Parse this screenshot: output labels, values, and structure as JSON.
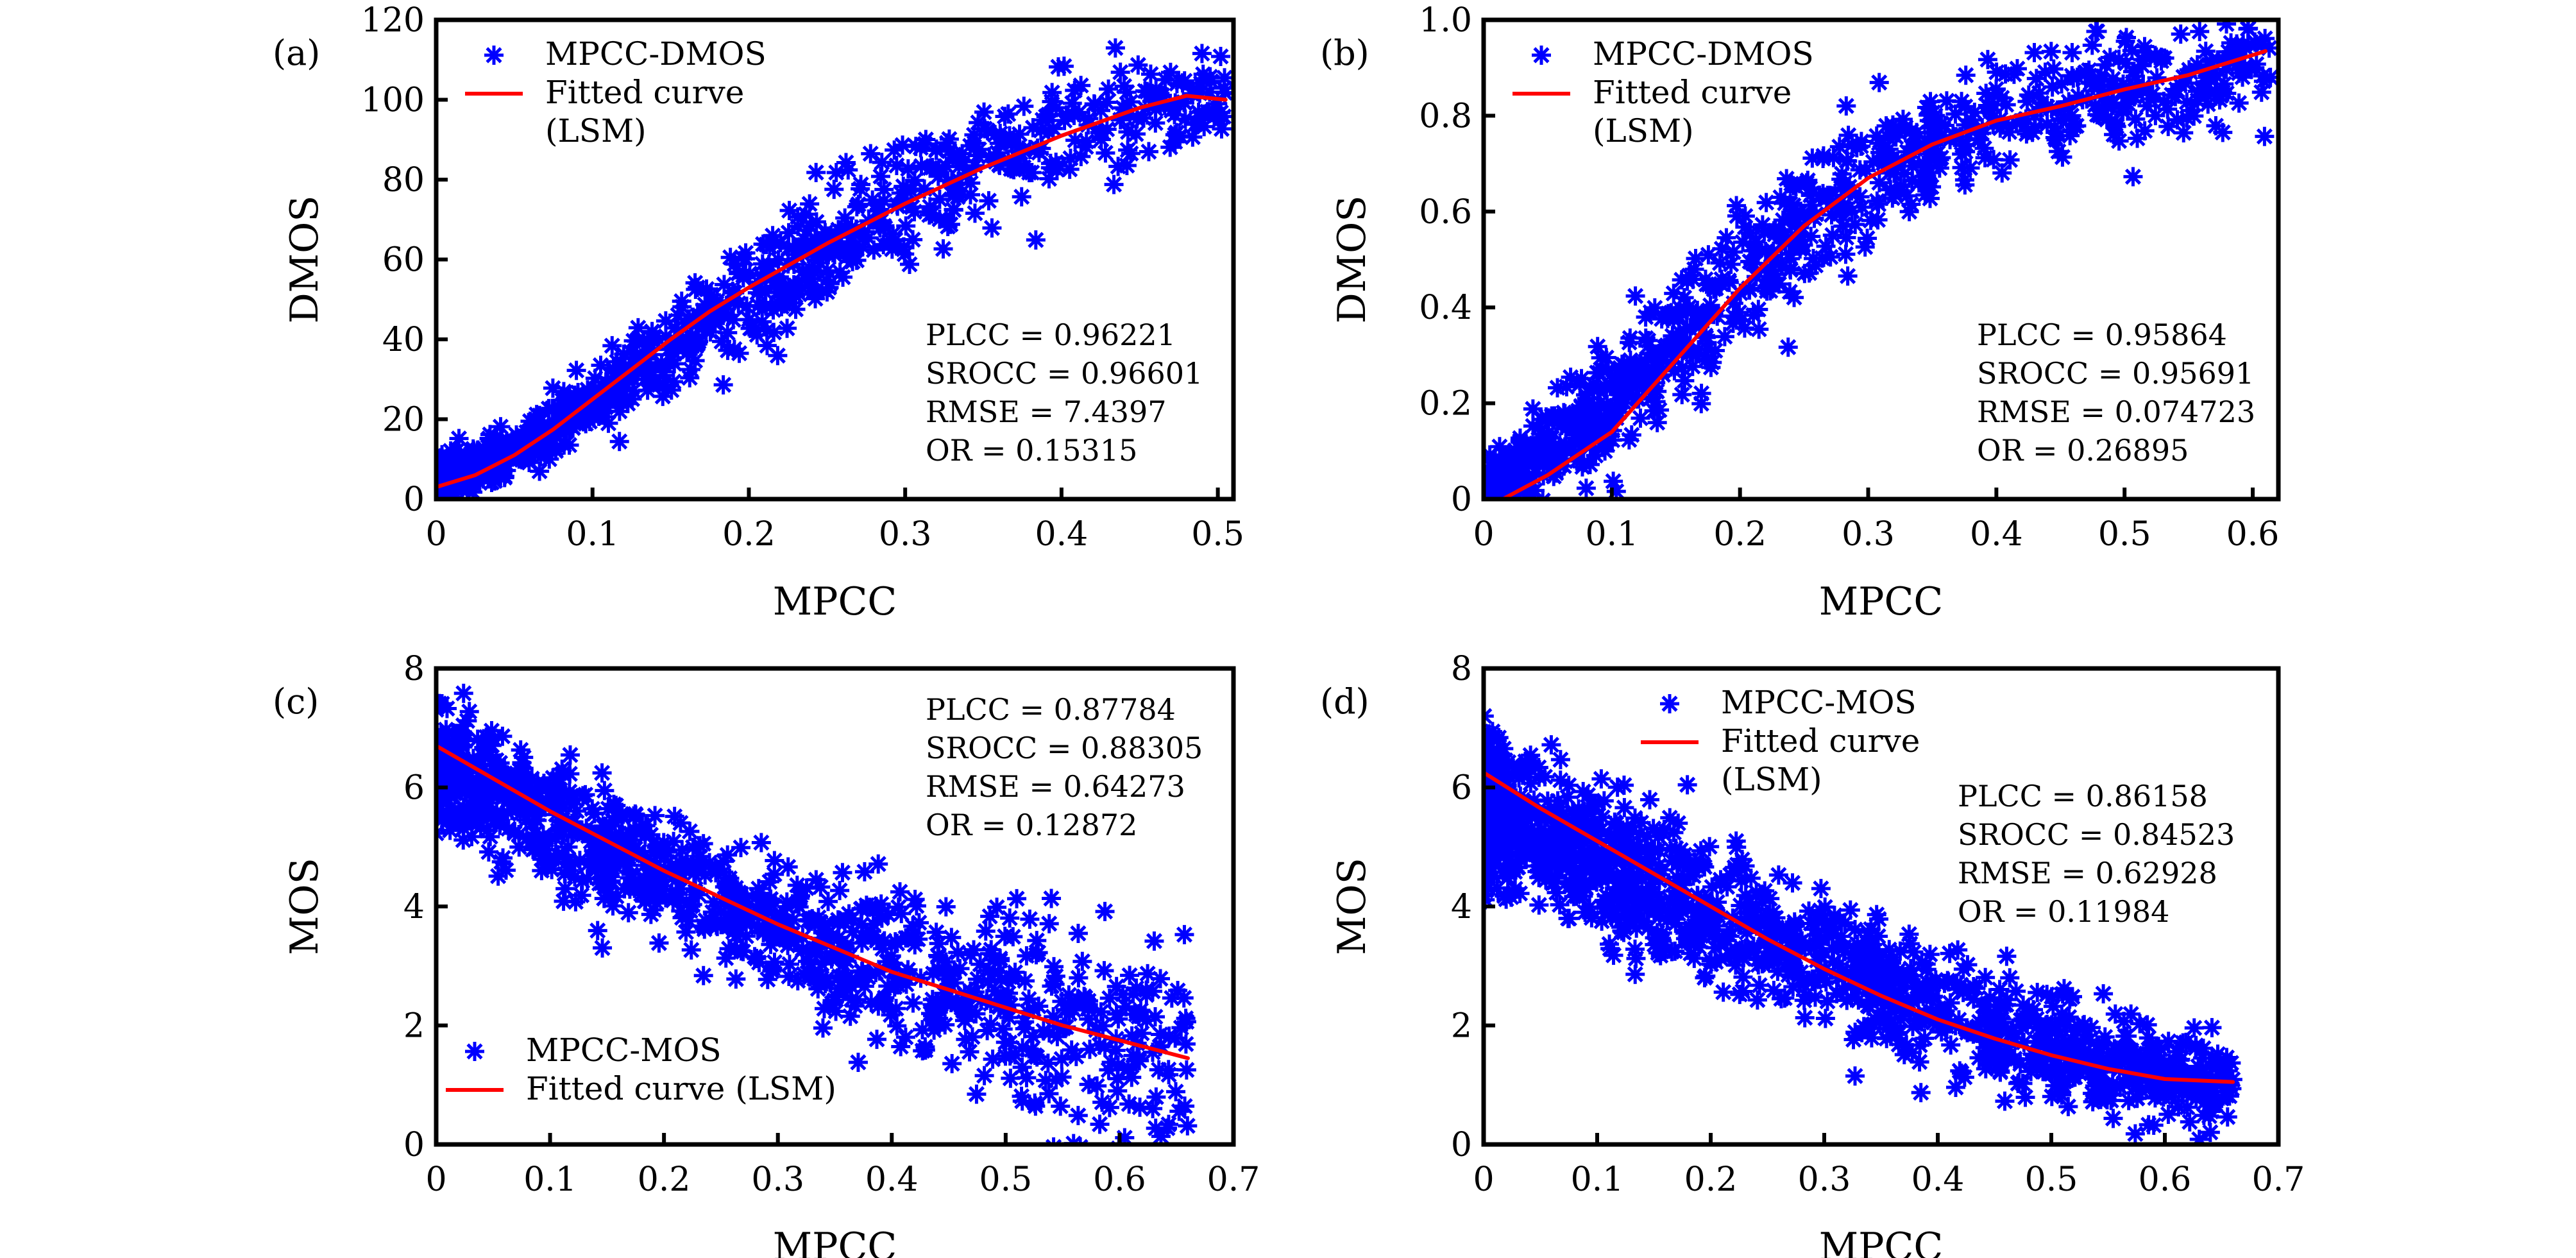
{
  "figure": {
    "background": "#ffffff",
    "marker_color": "#0000ff",
    "fit_color": "#ff0000"
  },
  "chart_data": [
    {
      "id": "a",
      "type": "scatter",
      "panel_label": "(a)",
      "xlabel": "MPCC",
      "ylabel": "DMOS",
      "xlim": [
        0,
        0.51
      ],
      "ylim": [
        0,
        120
      ],
      "xticks": [
        0,
        0.1,
        0.2,
        0.3,
        0.4,
        0.5
      ],
      "xtick_labels": [
        "0",
        "0.1",
        "0.2",
        "0.3",
        "0.4",
        "0.5"
      ],
      "yticks": [
        0,
        20,
        40,
        60,
        80,
        100,
        120
      ],
      "ytick_labels": [
        "0",
        "20",
        "40",
        "60",
        "80",
        "100",
        "120"
      ],
      "legend": {
        "placement": "top-left",
        "entries": [
          {
            "type": "marker",
            "label": "MPCC-DMOS"
          },
          {
            "type": "line",
            "label": "Fitted curve",
            "label_line2": "(LSM)"
          }
        ]
      },
      "stats": {
        "placement": "bottom-right",
        "lines": [
          "PLCC = 0.96221",
          "SROCC = 0.96601",
          "RMSE = 7.4397",
          "OR = 0.15315"
        ]
      },
      "scatter_model": {
        "x_range": [
          0.0,
          0.505
        ],
        "points_count": 900,
        "trend_x": [
          0,
          0.05,
          0.1,
          0.15,
          0.2,
          0.25,
          0.3,
          0.35,
          0.4,
          0.45,
          0.5
        ],
        "trend_y": [
          5,
          12,
          24,
          38,
          51,
          63,
          75,
          84,
          92,
          98,
          101
        ],
        "spread": [
          3,
          4,
          5,
          7,
          9,
          10,
          11,
          10,
          9,
          8,
          7
        ]
      },
      "fit_curve": {
        "x": [
          0,
          0.025,
          0.05,
          0.075,
          0.1,
          0.125,
          0.15,
          0.175,
          0.2,
          0.25,
          0.3,
          0.35,
          0.4,
          0.45,
          0.48,
          0.505
        ],
        "y": [
          3,
          6,
          11,
          17.5,
          25,
          32.5,
          40,
          47,
          53,
          64,
          74,
          83,
          91,
          98,
          101,
          100
        ]
      }
    },
    {
      "id": "b",
      "type": "scatter",
      "panel_label": "(b)",
      "xlabel": "MPCC",
      "ylabel": "DMOS",
      "xlim": [
        0,
        0.62
      ],
      "ylim": [
        0,
        1.0
      ],
      "xticks": [
        0,
        0.1,
        0.2,
        0.3,
        0.4,
        0.5,
        0.6
      ],
      "xtick_labels": [
        "0",
        "0.1",
        "0.2",
        "0.3",
        "0.4",
        "0.5",
        "0.6"
      ],
      "yticks": [
        0,
        0.2,
        0.4,
        0.6,
        0.8,
        1.0
      ],
      "ytick_labels": [
        "0",
        "0.2",
        "0.4",
        "0.6",
        "0.8",
        "1.0"
      ],
      "legend": {
        "placement": "top-left",
        "entries": [
          {
            "type": "marker",
            "label": "MPCC-DMOS"
          },
          {
            "type": "line",
            "label": "Fitted curve",
            "label_line2": "(LSM)"
          }
        ]
      },
      "stats": {
        "placement": "bottom-right",
        "lines": [
          "PLCC = 0.95864",
          "SROCC = 0.95691",
          "RMSE = 0.074723",
          "OR = 0.26895"
        ]
      },
      "scatter_model": {
        "x_range": [
          0.0,
          0.615
        ],
        "points_count": 900,
        "trend_x": [
          0,
          0.05,
          0.1,
          0.15,
          0.2,
          0.25,
          0.3,
          0.35,
          0.4,
          0.45,
          0.5,
          0.55,
          0.6
        ],
        "trend_y": [
          0.02,
          0.1,
          0.2,
          0.33,
          0.46,
          0.57,
          0.66,
          0.73,
          0.79,
          0.83,
          0.86,
          0.88,
          0.9
        ],
        "spread": [
          0.04,
          0.06,
          0.08,
          0.1,
          0.1,
          0.1,
          0.1,
          0.09,
          0.08,
          0.08,
          0.08,
          0.08,
          0.08
        ]
      },
      "fit_curve": {
        "x": [
          0.015,
          0.05,
          0.1,
          0.15,
          0.2,
          0.25,
          0.3,
          0.35,
          0.4,
          0.45,
          0.5,
          0.55,
          0.61
        ],
        "y": [
          0,
          0.05,
          0.14,
          0.29,
          0.44,
          0.57,
          0.67,
          0.74,
          0.79,
          0.82,
          0.855,
          0.885,
          0.935
        ]
      }
    },
    {
      "id": "c",
      "type": "scatter",
      "panel_label": "(c)",
      "xlabel": "MPCC",
      "ylabel": "MOS",
      "xlim": [
        0,
        0.7
      ],
      "ylim": [
        0,
        8
      ],
      "xticks": [
        0,
        0.1,
        0.2,
        0.3,
        0.4,
        0.5,
        0.6,
        0.7
      ],
      "xtick_labels": [
        "0",
        "0.1",
        "0.2",
        "0.3",
        "0.4",
        "0.5",
        "0.6",
        "0.7"
      ],
      "yticks": [
        0,
        2,
        4,
        6,
        8
      ],
      "ytick_labels": [
        "0",
        "2",
        "4",
        "6",
        "8"
      ],
      "legend": {
        "placement": "bottom-left",
        "entries": [
          {
            "type": "marker",
            "label": "MPCC-MOS"
          },
          {
            "type": "line",
            "label": "Fitted curve (LSM)",
            "label_line2": ""
          }
        ]
      },
      "stats": {
        "placement": "top-right",
        "lines": [
          "PLCC = 0.87784",
          "SROCC = 0.88305",
          "RMSE = 0.64273",
          "OR = 0.12872"
        ]
      },
      "scatter_model": {
        "x_range": [
          0.0,
          0.66
        ],
        "points_count": 1100,
        "trend_x": [
          0,
          0.1,
          0.2,
          0.3,
          0.4,
          0.5,
          0.6,
          0.66
        ],
        "trend_y": [
          6.4,
          5.5,
          4.5,
          3.6,
          2.9,
          2.3,
          1.7,
          1.5
        ],
        "spread": [
          0.6,
          0.7,
          0.7,
          0.7,
          0.9,
          1.2,
          1.3,
          1.3
        ]
      },
      "fit_curve": {
        "x": [
          0,
          0.05,
          0.1,
          0.15,
          0.2,
          0.25,
          0.3,
          0.35,
          0.4,
          0.45,
          0.5,
          0.55,
          0.6,
          0.66
        ],
        "y": [
          6.7,
          6.15,
          5.6,
          5.1,
          4.6,
          4.15,
          3.7,
          3.3,
          2.9,
          2.6,
          2.3,
          2.0,
          1.75,
          1.45
        ]
      }
    },
    {
      "id": "d",
      "type": "scatter",
      "panel_label": "(d)",
      "xlabel": "MPCC",
      "ylabel": "MOS",
      "xlim": [
        0,
        0.7
      ],
      "ylim": [
        0,
        8
      ],
      "xticks": [
        0,
        0.1,
        0.2,
        0.3,
        0.4,
        0.5,
        0.6,
        0.7
      ],
      "xtick_labels": [
        "0",
        "0.1",
        "0.2",
        "0.3",
        "0.4",
        "0.5",
        "0.6",
        "0.7"
      ],
      "yticks": [
        0,
        2,
        4,
        6,
        8
      ],
      "ytick_labels": [
        "0",
        "2",
        "4",
        "6",
        "8"
      ],
      "legend": {
        "placement": "top-center",
        "entries": [
          {
            "type": "marker",
            "label": "MPCC-MOS"
          },
          {
            "type": "line",
            "label": "Fitted curve",
            "label_line2": "(LSM)"
          }
        ]
      },
      "stats": {
        "placement": "top-right",
        "lines": [
          "PLCC = 0.86158",
          "SROCC = 0.84523",
          "RMSE = 0.62928",
          "OR = 0.11984"
        ]
      },
      "scatter_model": {
        "x_range": [
          0.0,
          0.66
        ],
        "points_count": 1300,
        "trend_x": [
          0,
          0.1,
          0.2,
          0.3,
          0.4,
          0.5,
          0.6,
          0.66
        ],
        "trend_y": [
          5.6,
          4.8,
          3.9,
          3.0,
          2.3,
          1.6,
          1.1,
          0.9
        ],
        "spread": [
          0.8,
          0.8,
          0.8,
          0.75,
          0.7,
          0.6,
          0.5,
          0.4
        ]
      },
      "fit_curve": {
        "x": [
          0,
          0.05,
          0.1,
          0.15,
          0.2,
          0.25,
          0.3,
          0.35,
          0.4,
          0.45,
          0.5,
          0.55,
          0.6,
          0.66
        ],
        "y": [
          6.25,
          5.65,
          5.1,
          4.55,
          4.0,
          3.45,
          2.95,
          2.5,
          2.1,
          1.78,
          1.5,
          1.27,
          1.1,
          1.05
        ]
      }
    }
  ]
}
